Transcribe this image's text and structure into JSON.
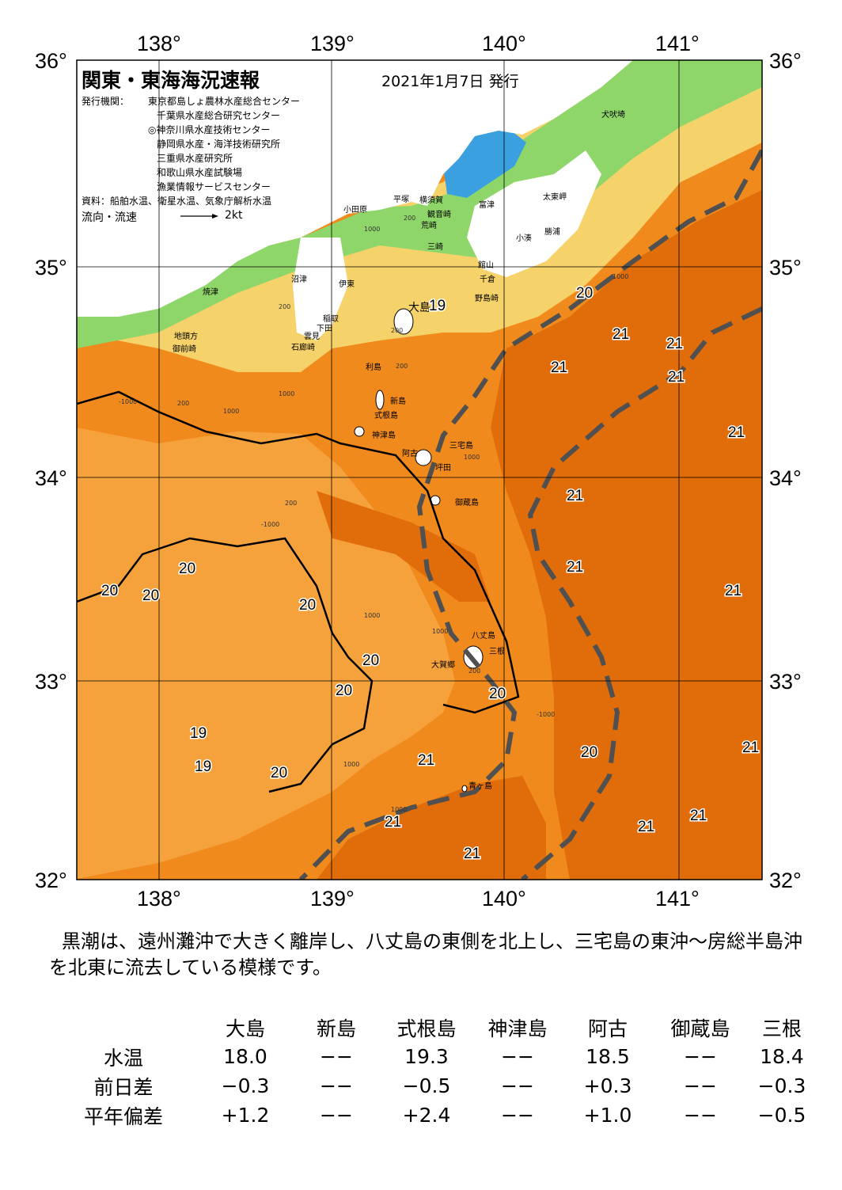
{
  "header": {
    "title": "関東・東海海況速報",
    "issued": "2021年1月7日 発行",
    "publisher_label": "発行機関：",
    "organizations": [
      "東京都島しょ農林水産総合センター",
      "千葉県水産総合研究センター",
      "◎神奈川県水産技術センター",
      "静岡県水産・海洋技術研究所",
      "三重県水産研究所",
      "和歌山県水産試験場",
      "漁業情報サービスセンター"
    ],
    "sources": "資料：船舶水温、衛星水温、気象庁解析水温",
    "current_legend_label": "流向・流速",
    "current_legend_scale": "2kt"
  },
  "axes": {
    "lon_labels": [
      "138°",
      "139°",
      "140°",
      "141°"
    ],
    "lat_labels": [
      "36°",
      "35°",
      "34°",
      "33°",
      "32°"
    ]
  },
  "place_labels": [
    "犬吠埼",
    "太東岬",
    "勝浦",
    "小湊",
    "館山",
    "千倉",
    "野島崎",
    "富津",
    "横須賀",
    "観音崎",
    "荒崎",
    "三崎",
    "平塚",
    "小田原",
    "沼津",
    "伊東",
    "焼津",
    "稲取",
    "下田",
    "雲見",
    "石廊崎",
    "地頭方",
    "御前崎",
    "大島",
    "利島",
    "新島",
    "式根島",
    "神津島",
    "三宅島",
    "阿古",
    "坪田",
    "御蔵島",
    "八丈島",
    "三根",
    "大賀郷",
    "青ヶ島"
  ],
  "temperature_labels": [
    "19",
    "20",
    "21",
    "21",
    "21",
    "21",
    "21",
    "21",
    "21",
    "21",
    "20",
    "20",
    "20",
    "20",
    "20",
    "20",
    "20",
    "20",
    "19",
    "19",
    "20",
    "21",
    "21",
    "21",
    "21",
    "21",
    "21",
    "21"
  ],
  "depth_labels": [
    "1000",
    "200",
    "200",
    "1000",
    "200",
    "1000",
    "1000",
    "200",
    "200",
    "200",
    "-1000",
    "1000",
    "1000",
    "200",
    "1000",
    "-1000",
    "1000",
    "-1000",
    "1000"
  ],
  "colors": {
    "warm_water": "#f08a1c",
    "kuroshio_core": "#e06c0a",
    "cool_water": "#f5a23d",
    "shelf": "#f6d36a",
    "coastal_green": "#8fd66a",
    "bay_blue": "#3aa0e0",
    "land": "#ffffff",
    "kuroshio_axis": "#505050"
  },
  "summary": "黒潮は、遠州灘沖で大きく離岸し、八丈島の東側を北上し、三宅島の東沖～房総半島沖を北東に流去している模様です。",
  "table": {
    "stations": [
      "大島",
      "新島",
      "式根島",
      "神津島",
      "阿古",
      "御蔵島",
      "三根"
    ],
    "rows": [
      {
        "label": "水温",
        "values": [
          "18.0",
          "−−",
          "19.3",
          "−−",
          "18.5",
          "−−",
          "18.4"
        ]
      },
      {
        "label": "前日差",
        "values": [
          "−0.3",
          "−−",
          "−0.5",
          "−−",
          "+0.3",
          "−−",
          "−0.3"
        ]
      },
      {
        "label": "平年偏差",
        "values": [
          "+1.2",
          "−−",
          "+2.4",
          "−−",
          "+1.0",
          "−−",
          "−0.5"
        ]
      }
    ]
  }
}
